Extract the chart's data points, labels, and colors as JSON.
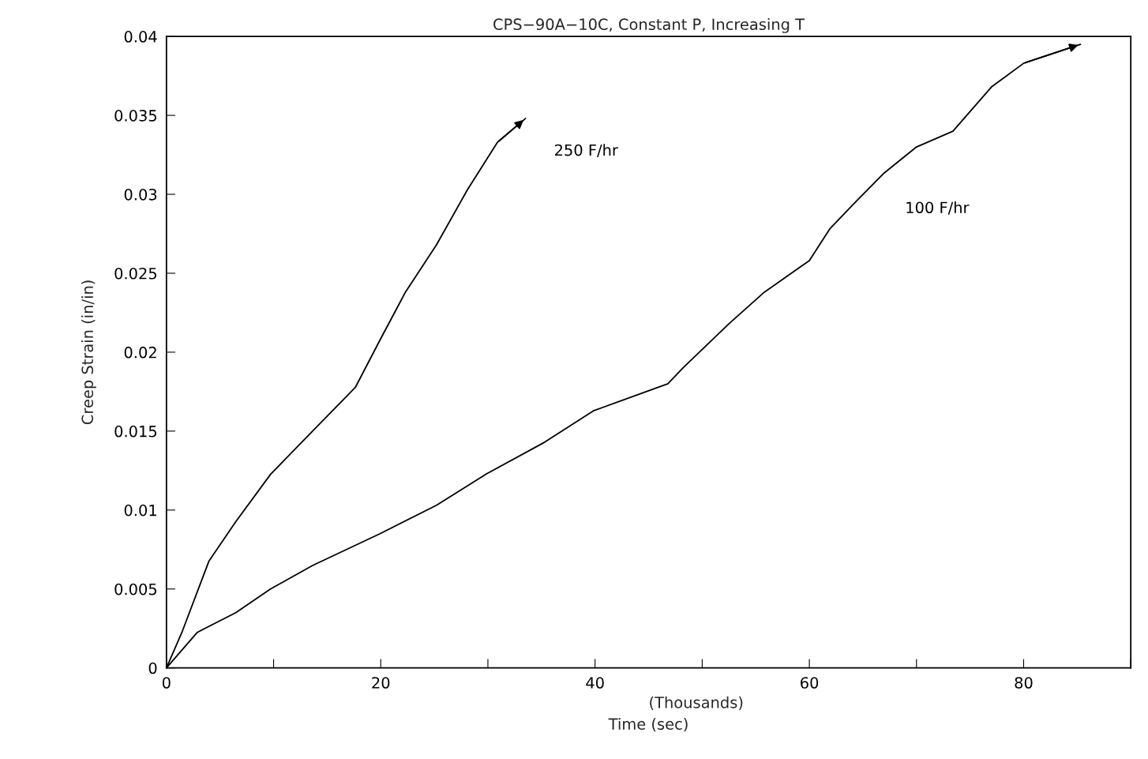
{
  "chart_data": {
    "type": "line",
    "title": "CPS−90A−10C, Constant P, Increasing T",
    "xlabel": "Time (sec)",
    "ylabel": "Creep Strain (in/in)",
    "annotations": [
      "(Thousands)"
    ],
    "xlim": [
      0,
      90
    ],
    "xticks": [
      0,
      {
        "value": 10,
        "label": null
      },
      20,
      {
        "value": 30,
        "label": null
      },
      40,
      {
        "value": 50,
        "label": null
      },
      60,
      {
        "value": 70,
        "label": null
      },
      80,
      {
        "value": 90,
        "label": null
      }
    ],
    "ylim": [
      0,
      0.04
    ],
    "yticks": [
      0,
      0.005,
      0.01,
      0.015,
      0.02,
      0.025,
      0.03,
      0.035,
      0.04
    ],
    "grid": false,
    "legend": false,
    "marker": "none",
    "line_style": "solid",
    "series": [
      {
        "name": "250 F/hr",
        "color": "#000000",
        "x": [
          0,
          1.44,
          3.96,
          6.47,
          9.71,
          13.67,
          17.63,
          19.93,
          22.3,
          25.2,
          28.1,
          30.9,
          33.5
        ],
        "values": [
          0,
          0.00225,
          0.00676,
          0.00926,
          0.01226,
          0.01502,
          0.01777,
          0.02077,
          0.0238,
          0.0268,
          0.0303,
          0.0333,
          0.0348
        ]
      },
      {
        "name": "100 F/hr",
        "color": "#000000",
        "x": [
          0,
          2.88,
          6.47,
          9.71,
          13.67,
          19.93,
          25.2,
          29.9,
          35.3,
          39.9,
          46.8,
          48.2,
          52.5,
          55.8,
          60.0,
          61.9,
          64.0,
          66.9,
          70.0,
          73.4,
          77.0,
          80.0,
          85.3
        ],
        "values": [
          0,
          0.00225,
          0.0035,
          0.005,
          0.0065,
          0.0085,
          0.0103,
          0.0123,
          0.0143,
          0.0163,
          0.018,
          0.019,
          0.0218,
          0.0238,
          0.0258,
          0.0278,
          0.0293,
          0.0313,
          0.033,
          0.034,
          0.0368,
          0.0383,
          0.0395
        ]
      }
    ]
  }
}
